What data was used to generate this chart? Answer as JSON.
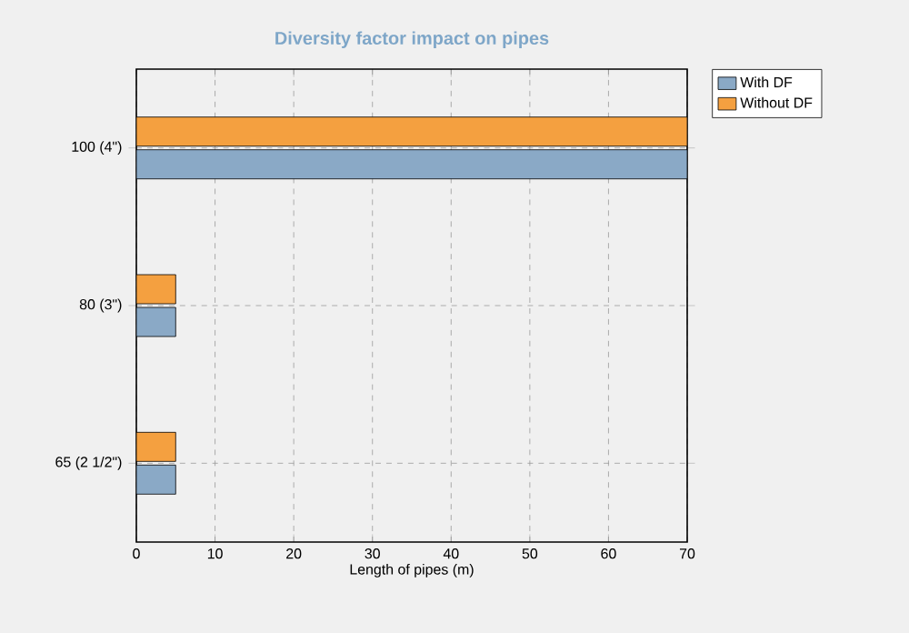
{
  "chart_data": {
    "type": "bar",
    "orientation": "horizontal",
    "title": "Diversity factor impact on pipes",
    "xlabel": "Length of pipes (m)",
    "categories": [
      "100 (4\")",
      "80 (3\")",
      "65 (2 1/2\")"
    ],
    "series": [
      {
        "name": "With DF",
        "color": "#8aa9c6",
        "values": [
          70,
          5,
          5
        ]
      },
      {
        "name": "Without DF",
        "color": "#f4a040",
        "values": [
          70,
          5,
          5
        ]
      }
    ],
    "xlim": [
      0,
      70
    ],
    "xticks": [
      0,
      10,
      20,
      30,
      40,
      50,
      60,
      70
    ],
    "grid": true,
    "legend": "top right"
  }
}
